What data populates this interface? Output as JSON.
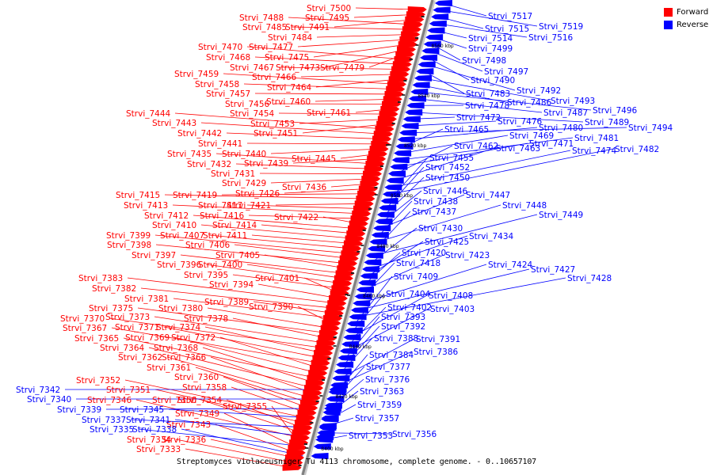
{
  "colors": {
    "forward": "#ff0000",
    "reverse": "#0000ff",
    "axis": "#808080",
    "tick": "#000000"
  },
  "legend": {
    "forward": "Forward",
    "reverse": "Reverse"
  },
  "caption": "Streptomyces violaceusniger Tu 4113 chromosome, complete genome. - 0..10657107",
  "axis_ticks": [
    "8560 kbp",
    "8540 kbp",
    "8520 kbp",
    "8500 kbp",
    "8480 kbp",
    "8460 kbp",
    "8440 kbp",
    "8420 kbp",
    "8400 kbp"
  ],
  "forward_genes": [
    "Strvi_7500",
    "Strvi_7495",
    "Strvi_7491",
    "Strvi_7488",
    "Strvi_7485",
    "Strvi_7484",
    "Strvi_7477",
    "Strvi_7475",
    "Strvi_7473",
    "Strvi_7479",
    "Strvi_7470",
    "Strvi_7468",
    "Strvi_7467",
    "Strvi_7466",
    "Strvi_7464",
    "Strvi_7459",
    "Strvi_7458",
    "Strvi_7457",
    "Strvi_7460",
    "Strvi_7456",
    "Strvi_7461",
    "Strvi_7454",
    "Strvi_7453",
    "Strvi_7451",
    "Strvi_7444",
    "Strvi_7443",
    "Strvi_7442",
    "Strvi_7441",
    "Strvi_7440",
    "Strvi_7445",
    "Strvi_7439",
    "Strvi_7435",
    "Strvi_7432",
    "Strvi_7431",
    "Strvi_7429",
    "Strvi_7436",
    "Strvi_7426",
    "Strvi_7419",
    "Strvi_7415",
    "Strvi_7421",
    "Strvi_7417",
    "Strvi_7413",
    "Strvi_7416",
    "Strvi_7422",
    "Strvi_7412",
    "Strvi_7414",
    "Strvi_7410",
    "Strvi_7411",
    "Strvi_7407",
    "Strvi_7399",
    "Strvi_7406",
    "Strvi_7398",
    "Strvi_7405",
    "Strvi_7397",
    "Strvi_7400",
    "Strvi_7396",
    "Strvi_7395",
    "Strvi_7401",
    "Strvi_7394",
    "Strvi_7383",
    "Strvi_7382",
    "Strvi_7389",
    "Strvi_7381",
    "Strvi_7390",
    "Strvi_7380",
    "Strvi_7375",
    "Strvi_7378",
    "Strvi_7373",
    "Strvi_7370",
    "Strvi_7374",
    "Strvi_7371",
    "Strvi_7367",
    "Strvi_7372",
    "Strvi_7369",
    "Strvi_7365",
    "Strvi_7368",
    "Strvi_7364",
    "Strvi_7366",
    "Strvi_7362",
    "Strvi_7361",
    "Strvi_7360",
    "Strvi_7358",
    "Strvi_7352",
    "Strvi_7351",
    "Strvi_7354",
    "Strvi_7350",
    "Strvi_7346",
    "Strvi_7355",
    "Strvi_7349",
    "Strvi_7343",
    "Strvi_7336",
    "Strvi_7334",
    "Strvi_7333"
  ],
  "reverse_genes": [
    "Strvi_7517",
    "Strvi_7519",
    "Strvi_7515",
    "Strvi_7516",
    "Strvi_7514",
    "Strvi_7499",
    "Strvi_7498",
    "Strvi_7497",
    "Strvi_7490",
    "Strvi_7492",
    "Strvi_7483",
    "Strvi_7493",
    "Strvi_7486",
    "Strvi_7496",
    "Strvi_7487",
    "Strvi_7478",
    "Strvi_7489",
    "Strvi_7472",
    "Strvi_7476",
    "Strvi_7494",
    "Strvi_7480",
    "Strvi_7465",
    "Strvi_7469",
    "Strvi_7481",
    "Strvi_7471",
    "Strvi_7462",
    "Strvi_7463",
    "Strvi_7474",
    "Strvi_7482",
    "Strvi_7455",
    "Strvi_7452",
    "Strvi_7450",
    "Strvi_7446",
    "Strvi_7447",
    "Strvi_7438",
    "Strvi_7448",
    "Strvi_7437",
    "Strvi_7449",
    "Strvi_7430",
    "Strvi_7434",
    "Strvi_7425",
    "Strvi_7420",
    "Strvi_7423",
    "Strvi_7418",
    "Strvi_7424",
    "Strvi_7427",
    "Strvi_7428",
    "Strvi_7409",
    "Strvi_7404",
    "Strvi_7408",
    "Strvi_7402",
    "Strvi_7403",
    "Strvi_7393",
    "Strvi_7392",
    "Strvi_7388",
    "Strvi_7391",
    "Strvi_7386",
    "Strvi_7384",
    "Strvi_7377",
    "Strvi_7376",
    "Strvi_7363",
    "Strvi_7359",
    "Strvi_7357",
    "Strvi_7356",
    "Strvi_7353",
    "Strvi_7342",
    "Strvi_7340",
    "Strvi_7339",
    "Strvi_7345",
    "Strvi_7337",
    "Strvi_7341",
    "Strvi_7335",
    "Strvi_7338"
  ]
}
